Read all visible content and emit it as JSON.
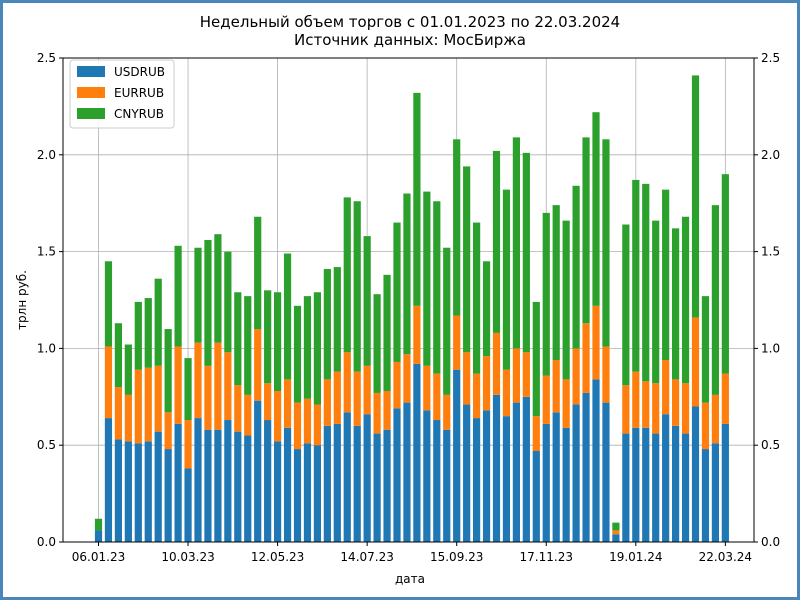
{
  "chart_data": {
    "type": "bar",
    "stacked": true,
    "title": "Недельный объем торгов с 01.01.2023 по 22.03.2024",
    "subtitle": "Источник данных: МосБиржа",
    "xlabel": "дата",
    "ylabel": "трлн руб.",
    "ylim": [
      0,
      2.5
    ],
    "yticks": [
      "0.0",
      "0.5",
      "1.0",
      "1.5",
      "2.0",
      "2.5"
    ],
    "xtick_labels": [
      "06.01.23",
      "10.03.23",
      "12.05.23",
      "14.07.23",
      "15.09.23",
      "17.11.23",
      "19.01.24",
      "22.03.24"
    ],
    "xtick_indices": [
      0,
      9,
      18,
      27,
      36,
      45,
      54,
      63
    ],
    "legend_location": "upper-left",
    "grid": true,
    "colors": {
      "USDRUB": "#1f77b4",
      "EURRUB": "#ff7f0e",
      "CNYRUB": "#2ca02c"
    },
    "series": [
      {
        "name": "USDRUB",
        "values": [
          0.06,
          0.64,
          0.53,
          0.52,
          0.51,
          0.52,
          0.57,
          0.48,
          0.61,
          0.38,
          0.64,
          0.58,
          0.58,
          0.63,
          0.57,
          0.55,
          0.73,
          0.63,
          0.52,
          0.59,
          0.48,
          0.51,
          0.5,
          0.6,
          0.61,
          0.67,
          0.6,
          0.66,
          0.56,
          0.58,
          0.69,
          0.72,
          0.92,
          0.68,
          0.63,
          0.58,
          0.89,
          0.71,
          0.64,
          0.68,
          0.76,
          0.65,
          0.72,
          0.75,
          0.47,
          0.61,
          0.67,
          0.59,
          0.71,
          0.77,
          0.84,
          0.72,
          0.04,
          0.56,
          0.59,
          0.59,
          0.56,
          0.66,
          0.6,
          0.56,
          0.7,
          0.48,
          0.51,
          0.61
        ]
      },
      {
        "name": "EURRUB",
        "values": [
          0.0,
          0.37,
          0.27,
          0.24,
          0.38,
          0.38,
          0.34,
          0.19,
          0.4,
          0.25,
          0.39,
          0.33,
          0.45,
          0.35,
          0.24,
          0.21,
          0.37,
          0.19,
          0.26,
          0.25,
          0.24,
          0.23,
          0.21,
          0.24,
          0.27,
          0.31,
          0.28,
          0.25,
          0.21,
          0.2,
          0.24,
          0.25,
          0.3,
          0.23,
          0.24,
          0.18,
          0.28,
          0.27,
          0.23,
          0.28,
          0.32,
          0.24,
          0.28,
          0.23,
          0.18,
          0.25,
          0.27,
          0.25,
          0.29,
          0.36,
          0.38,
          0.29,
          0.02,
          0.25,
          0.29,
          0.24,
          0.26,
          0.28,
          0.24,
          0.26,
          0.46,
          0.24,
          0.25,
          0.26
        ]
      },
      {
        "name": "CNYRUB",
        "values": [
          0.06,
          0.44,
          0.33,
          0.26,
          0.35,
          0.36,
          0.45,
          0.43,
          0.52,
          0.32,
          0.49,
          0.65,
          0.56,
          0.52,
          0.48,
          0.51,
          0.58,
          0.48,
          0.51,
          0.65,
          0.5,
          0.53,
          0.58,
          0.57,
          0.54,
          0.8,
          0.88,
          0.67,
          0.51,
          0.6,
          0.72,
          0.83,
          1.1,
          0.9,
          0.89,
          0.76,
          0.91,
          0.96,
          0.78,
          0.49,
          0.94,
          0.93,
          1.09,
          1.03,
          0.59,
          0.84,
          0.8,
          0.82,
          0.84,
          0.96,
          1.0,
          1.07,
          0.04,
          0.83,
          0.99,
          1.02,
          0.84,
          0.88,
          0.78,
          0.86,
          1.25,
          0.55,
          0.98,
          1.03
        ]
      }
    ]
  }
}
